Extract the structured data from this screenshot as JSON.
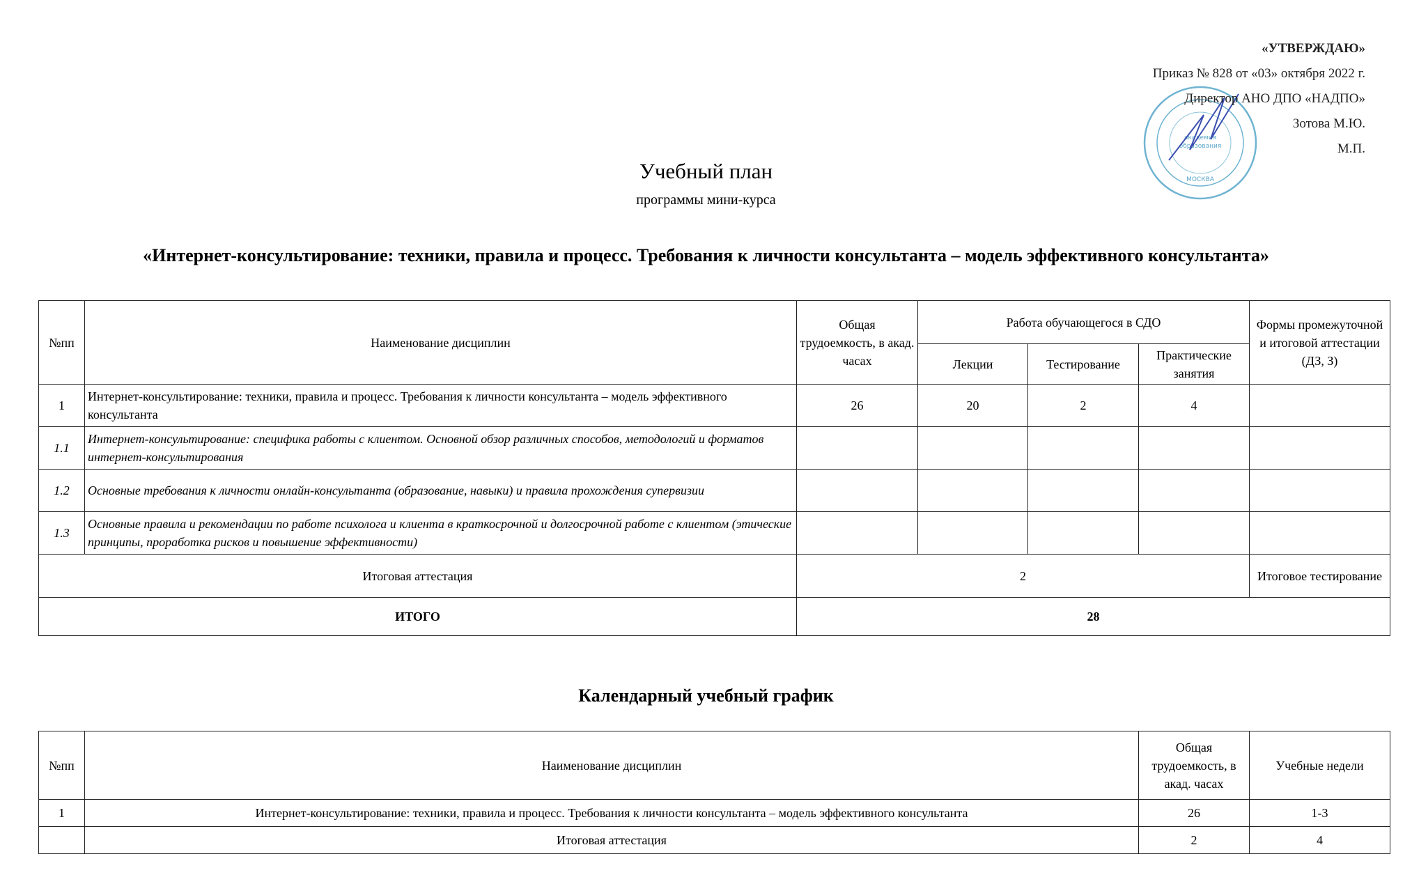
{
  "approval": {
    "title": "«УТВЕРЖДАЮ»",
    "order": "Приказ № 828 от «03» октября 2022 г.",
    "position": "Директор АНО ДПО «НАДПО»",
    "name": "Зотова М.Ю.",
    "seal_mark": "М.П.",
    "stamp_text": "Национальная академия дополнительного профессионального образования МОСКВА"
  },
  "header": {
    "title": "Учебный план",
    "subtitle": "программы мини-курса",
    "course": "«Интернет-консультирование: техники, правила и процесс. Требования к личности консультанта – модель эффективного консультанта»"
  },
  "plan": {
    "headers": {
      "num": "№пп",
      "name": "Наименование дисциплин",
      "total": "Общая трудоемкость, в акад. часах",
      "work": "Работа обучающегося в СДО",
      "lectures": "Лекции",
      "testing": "Тестирование",
      "practice": "Практические занятия",
      "forms": "Формы промежуточной и итоговой аттестации (ДЗ, З)"
    },
    "rows": [
      {
        "num": "1",
        "name": "Интернет-консультирование: техники, правила и процесс. Требования к личности консультанта – модель эффективного консультанта",
        "total": "26",
        "lectures": "20",
        "testing": "2",
        "practice": "4",
        "forms": ""
      },
      {
        "num": "1.1",
        "name": "Интернет-консультирование: специфика работы с клиентом. Основной обзор различных способов, методологий и форматов интернет-консультирования"
      },
      {
        "num": "1.2",
        "name": "Основные требования к личности онлайн-консультанта (образование, навыки) и правила прохождения супервизии"
      },
      {
        "num": "1.3",
        "name": "Основные правила и рекомендации по работе психолога и клиента в краткосрочной и долгосрочной работе с клиентом (этические принципы, проработка рисков и повышение эффективности)"
      }
    ],
    "final": {
      "label": "Итоговая аттестация",
      "hours": "2",
      "form": "Итоговое тестирование"
    },
    "total": {
      "label": "ИТОГО",
      "hours": "28"
    }
  },
  "calendar": {
    "title": "Календарный учебный график",
    "headers": {
      "num": "№пп",
      "name": "Наименование дисциплин",
      "total": "Общая трудоемкость, в акад. часах",
      "weeks": "Учебные недели"
    },
    "rows": [
      {
        "num": "1",
        "name": "Интернет-консультирование: техники, правила и процесс. Требования к личности консультанта – модель эффективного консультанта",
        "total": "26",
        "weeks": "1-3"
      },
      {
        "num": "",
        "name": "Итоговая аттестация",
        "total": "2",
        "weeks": "4"
      }
    ]
  }
}
